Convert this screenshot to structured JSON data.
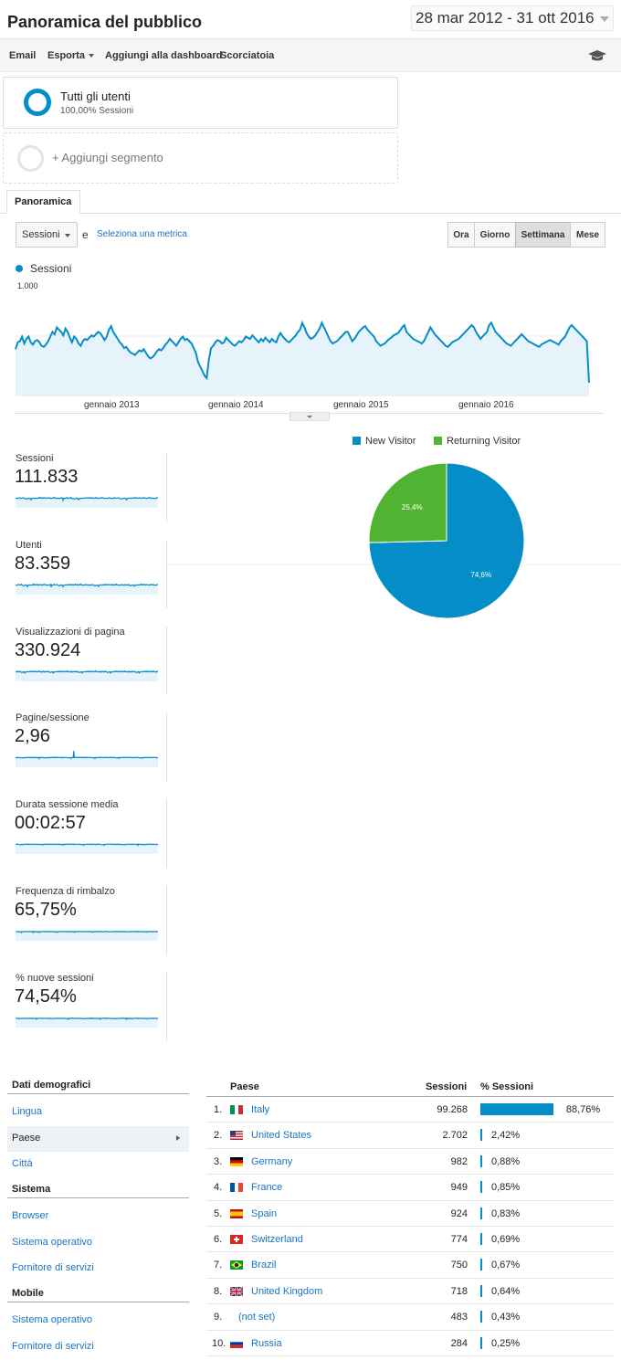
{
  "header": {
    "title": "Panoramica del pubblico",
    "date_range": "28 mar 2012 - 31 ott 2016"
  },
  "toolbar": {
    "email": "Email",
    "export": "Esporta",
    "add_dashboard": "Aggiungi alla dashboard",
    "shortcut": "Scorciatoia",
    "icon": "graduation-cap-icon"
  },
  "segments": {
    "active": {
      "title": "Tutti gli utenti",
      "subtitle": "100,00% Sessioni"
    },
    "add_label": "+ Aggiungi segmento"
  },
  "tabs": [
    "Panoramica"
  ],
  "metric_selector": {
    "selected": "Sessioni",
    "and": "e",
    "link": "Seleziona una metrica"
  },
  "time_buttons": [
    {
      "label": "Ora",
      "active": false
    },
    {
      "label": "Giorno",
      "active": false
    },
    {
      "label": "Settimana",
      "active": true
    },
    {
      "label": "Mese",
      "active": false
    }
  ],
  "chart_data": {
    "type": "area",
    "series": [
      {
        "name": "Sessioni",
        "color": "#058dc7"
      }
    ],
    "y_ticks": [
      "1.000",
      "500"
    ],
    "ylim": [
      0,
      1000
    ],
    "x_ticks": [
      "gennaio 2013",
      "gennaio 2014",
      "gennaio 2015",
      "gennaio 2016"
    ],
    "weekly_values": [
      410,
      470,
      480,
      520,
      460,
      500,
      520,
      470,
      450,
      480,
      490,
      470,
      440,
      430,
      450,
      480,
      520,
      560,
      540,
      600,
      580,
      560,
      530,
      590,
      560,
      510,
      470,
      520,
      500,
      460,
      440,
      480,
      500,
      490,
      510,
      530,
      520,
      540,
      560,
      550,
      520,
      490,
      520,
      580,
      610,
      560,
      530,
      500,
      470,
      450,
      420,
      430,
      400,
      380,
      370,
      360,
      380,
      400,
      390,
      410,
      380,
      350,
      330,
      340,
      360,
      390,
      410,
      400,
      420,
      450,
      470,
      500,
      480,
      460,
      440,
      470,
      500,
      520,
      490,
      500,
      480,
      460,
      420,
      380,
      300,
      260,
      220,
      180,
      160,
      320,
      420,
      440,
      470,
      490,
      480,
      460,
      470,
      510,
      490,
      470,
      450,
      440,
      460,
      480,
      470,
      490,
      520,
      510,
      500,
      530,
      510,
      490,
      470,
      500,
      480,
      510,
      490,
      470,
      500,
      480,
      470,
      520,
      550,
      520,
      500,
      480,
      470,
      490,
      510,
      530,
      560,
      580,
      640,
      600,
      550,
      520,
      500,
      510,
      530,
      560,
      590,
      640,
      600,
      560,
      520,
      480,
      460,
      470,
      480,
      500,
      520,
      540,
      560,
      560,
      520,
      480,
      500,
      530,
      560,
      580,
      600,
      610,
      580,
      560,
      540,
      520,
      480,
      460,
      440,
      450,
      460,
      480,
      500,
      510,
      530,
      540,
      550,
      570,
      600,
      620,
      560,
      540,
      520,
      500,
      490,
      480,
      470,
      460,
      480,
      520,
      560,
      600,
      570,
      540,
      520,
      500,
      480,
      460,
      440,
      430,
      450,
      470,
      480,
      490,
      500,
      520,
      540,
      560,
      580,
      600,
      620,
      600,
      560,
      530,
      500,
      520,
      540,
      560,
      620,
      640,
      600,
      560,
      540,
      520,
      500,
      480,
      460,
      450,
      440,
      460,
      480,
      500,
      520,
      540,
      520,
      500,
      480,
      470,
      460,
      450,
      440,
      430,
      450,
      460,
      470,
      480,
      490,
      480,
      470,
      460,
      450,
      480,
      500,
      520,
      560,
      600,
      620,
      600,
      580,
      560,
      540,
      520,
      500,
      480,
      120
    ],
    "line": "x = sessioni settimanali 2012-03-28 .. 2016-10-31"
  },
  "scorecards": [
    {
      "label": "Sessioni",
      "value": "111.833"
    },
    {
      "label": "Utenti",
      "value": "83.359"
    },
    {
      "label": "Visualizzazioni di pagina",
      "value": "330.924"
    },
    {
      "label": "Pagine/sessione",
      "value": "2,96"
    },
    {
      "label": "Durata sessione media",
      "value": "00:02:57"
    },
    {
      "label": "Frequenza di rimbalzo",
      "value": "65,75%"
    },
    {
      "label": "% nuove sessioni",
      "value": "74,54%"
    }
  ],
  "pie": {
    "legend": [
      {
        "name": "New Visitor",
        "color": "#058dc7"
      },
      {
        "name": "Returning Visitor",
        "color": "#50b432"
      }
    ],
    "values": [
      74.6,
      25.4
    ],
    "labels": [
      "74,6%",
      "25,4%"
    ]
  },
  "nav": {
    "demographics": {
      "title": "Dati demografici",
      "items": [
        "Lingua",
        "Paese",
        "Città"
      ],
      "active": 1
    },
    "system": {
      "title": "Sistema",
      "items": [
        "Browser",
        "Sistema operativo",
        "Fornitore di servizi"
      ]
    },
    "mobile": {
      "title": "Mobile",
      "items": [
        "Sistema operativo",
        "Fornitore di servizi"
      ]
    }
  },
  "table": {
    "headers": {
      "country": "Paese",
      "sessions": "Sessioni",
      "pct": "% Sessioni"
    },
    "rows": [
      {
        "rank": "1.",
        "country": "Italy",
        "flag": "it",
        "sessions": "99.268",
        "pct": "88,76%",
        "share": 0.8876
      },
      {
        "rank": "2.",
        "country": "United States",
        "flag": "us",
        "sessions": "2.702",
        "pct": "2,42%",
        "share": 0.0242
      },
      {
        "rank": "3.",
        "country": "Germany",
        "flag": "de",
        "sessions": "982",
        "pct": "0,88%",
        "share": 0.0088
      },
      {
        "rank": "4.",
        "country": "France",
        "flag": "fr",
        "sessions": "949",
        "pct": "0,85%",
        "share": 0.0085
      },
      {
        "rank": "5.",
        "country": "Spain",
        "flag": "es",
        "sessions": "924",
        "pct": "0,83%",
        "share": 0.0083
      },
      {
        "rank": "6.",
        "country": "Switzerland",
        "flag": "ch",
        "sessions": "774",
        "pct": "0,69%",
        "share": 0.0069
      },
      {
        "rank": "7.",
        "country": "Brazil",
        "flag": "br",
        "sessions": "750",
        "pct": "0,67%",
        "share": 0.0067
      },
      {
        "rank": "8.",
        "country": "United Kingdom",
        "flag": "gb",
        "sessions": "718",
        "pct": "0,64%",
        "share": 0.0064
      },
      {
        "rank": "9.",
        "country": "(not set)",
        "flag": "",
        "sessions": "483",
        "pct": "0,43%",
        "share": 0.0043
      },
      {
        "rank": "10.",
        "country": "Russia",
        "flag": "ru",
        "sessions": "284",
        "pct": "0,25%",
        "share": 0.0025
      }
    ]
  }
}
